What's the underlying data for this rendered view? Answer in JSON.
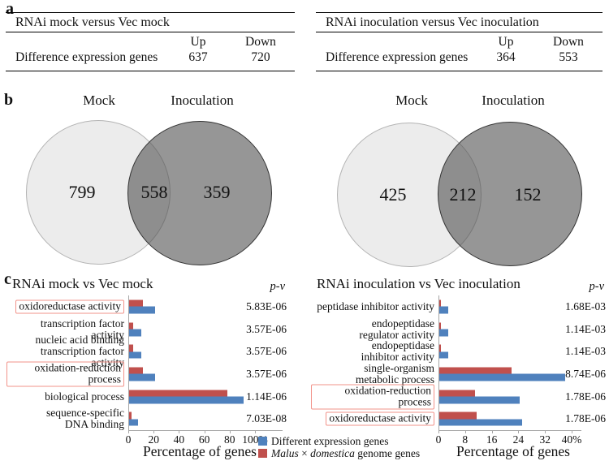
{
  "figure": {
    "panel_a": "a",
    "panel_b": "b",
    "panel_c": "c"
  },
  "colors": {
    "bar_blue": "#4F81BD",
    "bar_red": "#C0504D",
    "highlight_box": "#f2938a",
    "venn_light_fill": "#ececec",
    "venn_dark_fill": "#929292"
  },
  "tables": [
    {
      "title": "RNAi mock versus Vec mock",
      "up_header": "Up",
      "down_header": "Down",
      "row_label": "Difference expression genes",
      "up_value": "637",
      "down_value": "720"
    },
    {
      "title": "RNAi inoculation versus Vec inoculation",
      "up_header": "Up",
      "down_header": "Down",
      "row_label": "Difference expression genes",
      "up_value": "364",
      "down_value": "553"
    }
  ],
  "venns": [
    {
      "left_set_label": "Mock",
      "right_set_label": "Inoculation",
      "left_only": "799",
      "overlap": "558",
      "right_only": "359"
    },
    {
      "left_set_label": "Mock",
      "right_set_label": "Inoculation",
      "left_only": "425",
      "overlap": "212",
      "right_only": "152"
    }
  ],
  "chart_data": [
    {
      "type": "bar",
      "title": "RNAi mock vs Vec mock",
      "pvalue_header": "p-v",
      "xlabel": "Percentage of genes",
      "xlim": [
        0,
        100
      ],
      "xticks": [
        0,
        20,
        40,
        60,
        80,
        100
      ],
      "xtick_labels": [
        "0",
        "20",
        "40",
        "60",
        "80",
        "100%"
      ],
      "legend_position": "bottom-right",
      "grid": false,
      "categories": [
        "oxidoreductase activity",
        "transcription factor activity",
        "nucleic acid binding\ntranscription factor activity",
        "oxidation-reduction process",
        "biological process",
        "sequence-specific\nDNA binding"
      ],
      "highlighted_categories": [
        true,
        false,
        false,
        true,
        false,
        false
      ],
      "series": [
        {
          "name": "Different expression genes",
          "values": [
            21,
            10,
            10,
            21,
            91,
            8
          ]
        },
        {
          "name": "Malus × domestica genome genes",
          "values": [
            11.5,
            4,
            4,
            11.5,
            78,
            2.5
          ]
        }
      ],
      "p_values": [
        "5.83E-06",
        "3.57E-06",
        "3.57E-06",
        "3.57E-06",
        "1.14E-06",
        "7.03E-08"
      ]
    },
    {
      "type": "bar",
      "title": "RNAi inoculation vs Vec inoculation",
      "pvalue_header": "p-v",
      "xlabel": "Percentage of genes",
      "xlim": [
        0,
        40
      ],
      "xticks": [
        0,
        8,
        16,
        24,
        32,
        40
      ],
      "xtick_labels": [
        "0",
        "8",
        "16",
        "24",
        "32",
        "40%"
      ],
      "legend_position": "bottom-left",
      "grid": false,
      "categories": [
        "peptidase inhibitor activity",
        "endopeptidase\nregulator activity",
        "endopeptidase\ninhibitor activity",
        "single-organism\nmetabolic process",
        "oxidation-reduction process",
        "oxidoreductase activity"
      ],
      "highlighted_categories": [
        false,
        false,
        false,
        false,
        true,
        true
      ],
      "series": [
        {
          "name": "Different expression genes",
          "values": [
            3,
            3,
            3,
            38,
            24.5,
            25
          ]
        },
        {
          "name": "Malus × domestica genome genes",
          "values": [
            0.8,
            0.8,
            0.8,
            22,
            11,
            11.5
          ]
        }
      ],
      "p_values": [
        "1.68E-03",
        "1.14E-03",
        "1.14E-03",
        "8.74E-06",
        "1.78E-06",
        "1.78E-06"
      ]
    }
  ],
  "legend": {
    "items": [
      {
        "color_key": "bar_blue",
        "parts": [
          {
            "text": "Different expression genes",
            "italic": false
          }
        ]
      },
      {
        "color_key": "bar_red",
        "parts": [
          {
            "text": "Malus",
            "italic": true
          },
          {
            "text": " × ",
            "italic": false
          },
          {
            "text": "domestica",
            "italic": true
          },
          {
            "text": " genome genes",
            "italic": false
          }
        ]
      }
    ]
  }
}
